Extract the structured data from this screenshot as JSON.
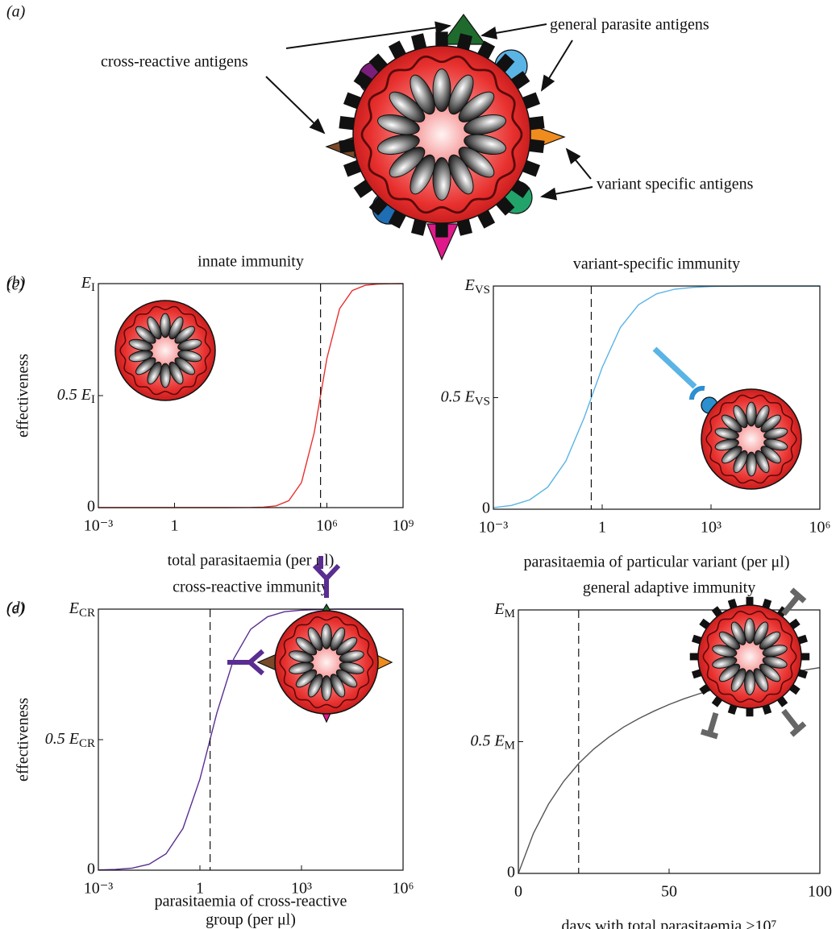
{
  "panel_a": {
    "label": "(a)",
    "annotations": [
      "general parasite antigens",
      "cross-reactive antigens",
      "variant specific antigens"
    ]
  },
  "chart_data": [
    {
      "type": "line",
      "panel": "(b)",
      "title": "innate immunity",
      "xlabel": "total parasitaemia (per μl)",
      "ylabel": "effectiveness",
      "xscale": "log",
      "xlim": [
        0.001,
        1000000000
      ],
      "xticks": [
        {
          "value": 0.001,
          "label": "10⁻³"
        },
        1,
        {
          "value": 1000000,
          "label": "10⁶"
        },
        {
          "value": 1000000000,
          "label": "10⁹"
        }
      ],
      "ylim": [
        0,
        1
      ],
      "yticks": [
        0,
        {
          "value": 0.5,
          "label": "0.5 E",
          "sub": "I"
        },
        {
          "value": 1,
          "label": "E",
          "sub": "I"
        }
      ],
      "x": [
        0.001,
        0.01,
        0.1,
        1,
        10,
        100,
        1000,
        3162,
        10000,
        31623,
        100000,
        316228,
        1000000,
        3162278,
        10000000,
        31622777,
        100000000,
        316227766,
        1000000000
      ],
      "values": [
        0,
        0,
        0,
        0,
        0,
        0,
        0.0005,
        0.002,
        0.008,
        0.031,
        0.112,
        0.334,
        0.666,
        0.888,
        0.969,
        0.992,
        0.998,
        0.9995,
        1
      ],
      "color": "#e8312f",
      "threshold": 562341
    },
    {
      "type": "line",
      "panel": "(c)",
      "title": "variant-specific immunity",
      "xlabel": "parasitaemia of particular variant (per μl)",
      "xscale": "log",
      "xlim": [
        0.001,
        1000000
      ],
      "xticks": [
        {
          "value": 0.001,
          "label": "10⁻³"
        },
        1,
        {
          "value": 1000,
          "label": "10³"
        },
        {
          "value": 1000000,
          "label": "10⁶"
        }
      ],
      "ylim": [
        0,
        1
      ],
      "yticks": [
        0,
        {
          "value": 0.5,
          "label": "0.5 E",
          "sub": "VS"
        },
        {
          "value": 1,
          "label": "E",
          "sub": "VS"
        }
      ],
      "x": [
        0.001,
        0.00316,
        0.01,
        0.0316,
        0.1,
        0.316,
        1,
        3.16,
        10,
        31.6,
        100,
        316,
        1000,
        10000,
        100000,
        1000000
      ],
      "values": [
        0.007,
        0.017,
        0.042,
        0.099,
        0.216,
        0.409,
        0.635,
        0.814,
        0.916,
        0.965,
        0.986,
        0.994,
        0.998,
        1,
        1,
        1
      ],
      "color": "#5ab4e5",
      "threshold": 0.5
    },
    {
      "type": "line",
      "panel": "(d)",
      "title": "cross-reactive immunity",
      "xlabel": [
        "parasitaemia of cross-reactive",
        "group (per μl)"
      ],
      "ylabel": "effectiveness",
      "xscale": "log",
      "xlim": [
        0.001,
        1000000
      ],
      "xticks": [
        {
          "value": 0.001,
          "label": "10⁻³"
        },
        1,
        {
          "value": 1000,
          "label": "10³"
        },
        {
          "value": 1000000,
          "label": "10⁶"
        }
      ],
      "ylim": [
        0,
        1
      ],
      "yticks": [
        0,
        {
          "value": 0.5,
          "label": "0.5 E",
          "sub": "CR"
        },
        {
          "value": 1,
          "label": "E",
          "sub": "CR"
        }
      ],
      "x": [
        0.001,
        0.00316,
        0.01,
        0.0316,
        0.1,
        0.316,
        1,
        3.16,
        10,
        31.6,
        100,
        316,
        1000,
        10000,
        100000,
        1000000
      ],
      "values": [
        0.001,
        0.003,
        0.008,
        0.023,
        0.063,
        0.16,
        0.349,
        0.602,
        0.81,
        0.923,
        0.971,
        0.99,
        0.996,
        1,
        1,
        1
      ],
      "color": "#5a2d91",
      "threshold": 2
    },
    {
      "type": "line",
      "panel": "(e)",
      "title": "general adaptive immunity",
      "xlabel": "days with total parasitaemia >10⁷",
      "xscale": "linear",
      "xlim": [
        0,
        100
      ],
      "xticks": [
        0,
        50,
        100
      ],
      "ylim": [
        0,
        1
      ],
      "yticks": [
        0,
        {
          "value": 0.5,
          "label": "0.5 E",
          "sub": "M"
        },
        {
          "value": 1,
          "label": "E",
          "sub": "M"
        }
      ],
      "x": [
        0,
        5,
        10,
        15,
        20,
        25,
        30,
        35,
        40,
        45,
        50,
        55,
        60,
        65,
        70,
        75,
        80,
        85,
        90,
        95,
        100
      ],
      "values": [
        0,
        0.152,
        0.263,
        0.349,
        0.417,
        0.472,
        0.517,
        0.556,
        0.588,
        0.616,
        0.641,
        0.663,
        0.682,
        0.699,
        0.714,
        0.728,
        0.741,
        0.752,
        0.763,
        0.772,
        0.781
      ],
      "color": "#555555",
      "threshold": 20
    }
  ]
}
